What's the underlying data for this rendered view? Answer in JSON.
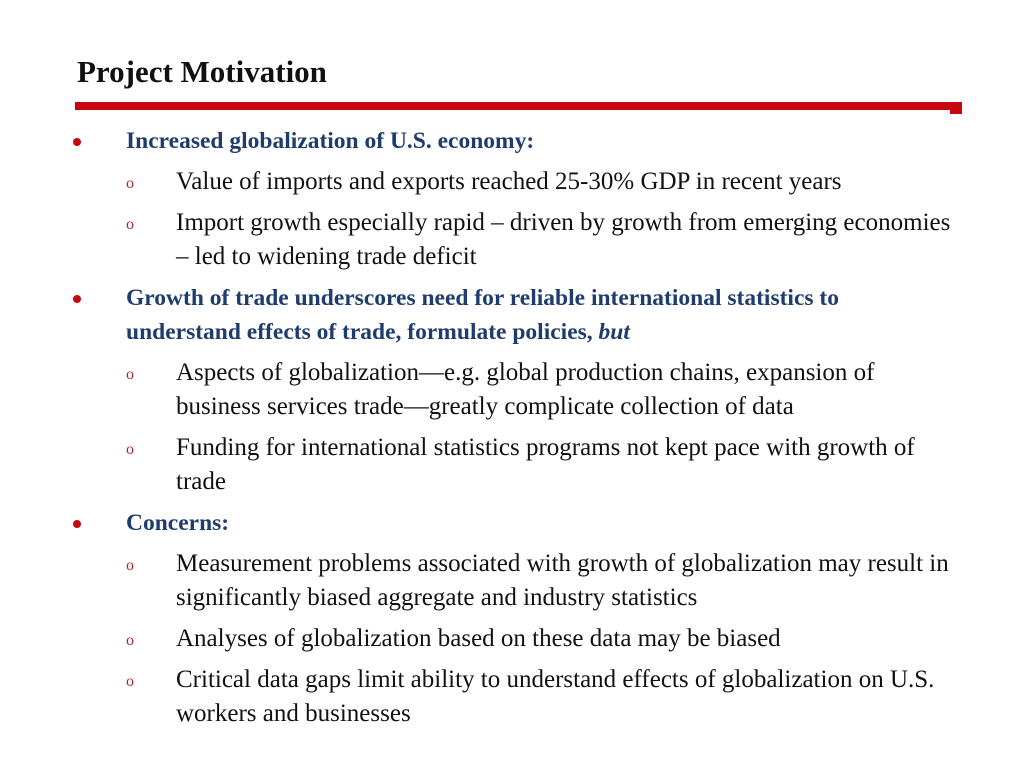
{
  "slide": {
    "title": "Project Motivation",
    "accent_color": "#c8060f",
    "heading_color": "#1f3c6e",
    "sub_marker": "o",
    "sections": [
      {
        "heading": "Increased globalization of U.S. economy:",
        "heading_emphasis": "",
        "items": [
          "Value of imports and exports reached 25-30% GDP in recent years",
          "Import growth especially rapid – driven by growth from emerging economies – led to widening trade deficit"
        ]
      },
      {
        "heading": "Growth of trade underscores need for reliable international statistics to understand effects of trade, formulate policies, ",
        "heading_emphasis": "but",
        "items": [
          "Aspects of globalization—e.g. global production chains, expansion of business services trade—greatly complicate collection of data",
          "Funding for international statistics programs not kept pace with growth of trade"
        ]
      },
      {
        "heading": "Concerns:",
        "heading_emphasis": "",
        "items": [
          "Measurement problems associated with growth of globalization may result in significantly biased aggregate and industry statistics",
          "Analyses of globalization based on these data may be biased",
          "Critical data gaps limit ability to understand effects of globalization on U.S. workers and businesses"
        ]
      }
    ]
  }
}
